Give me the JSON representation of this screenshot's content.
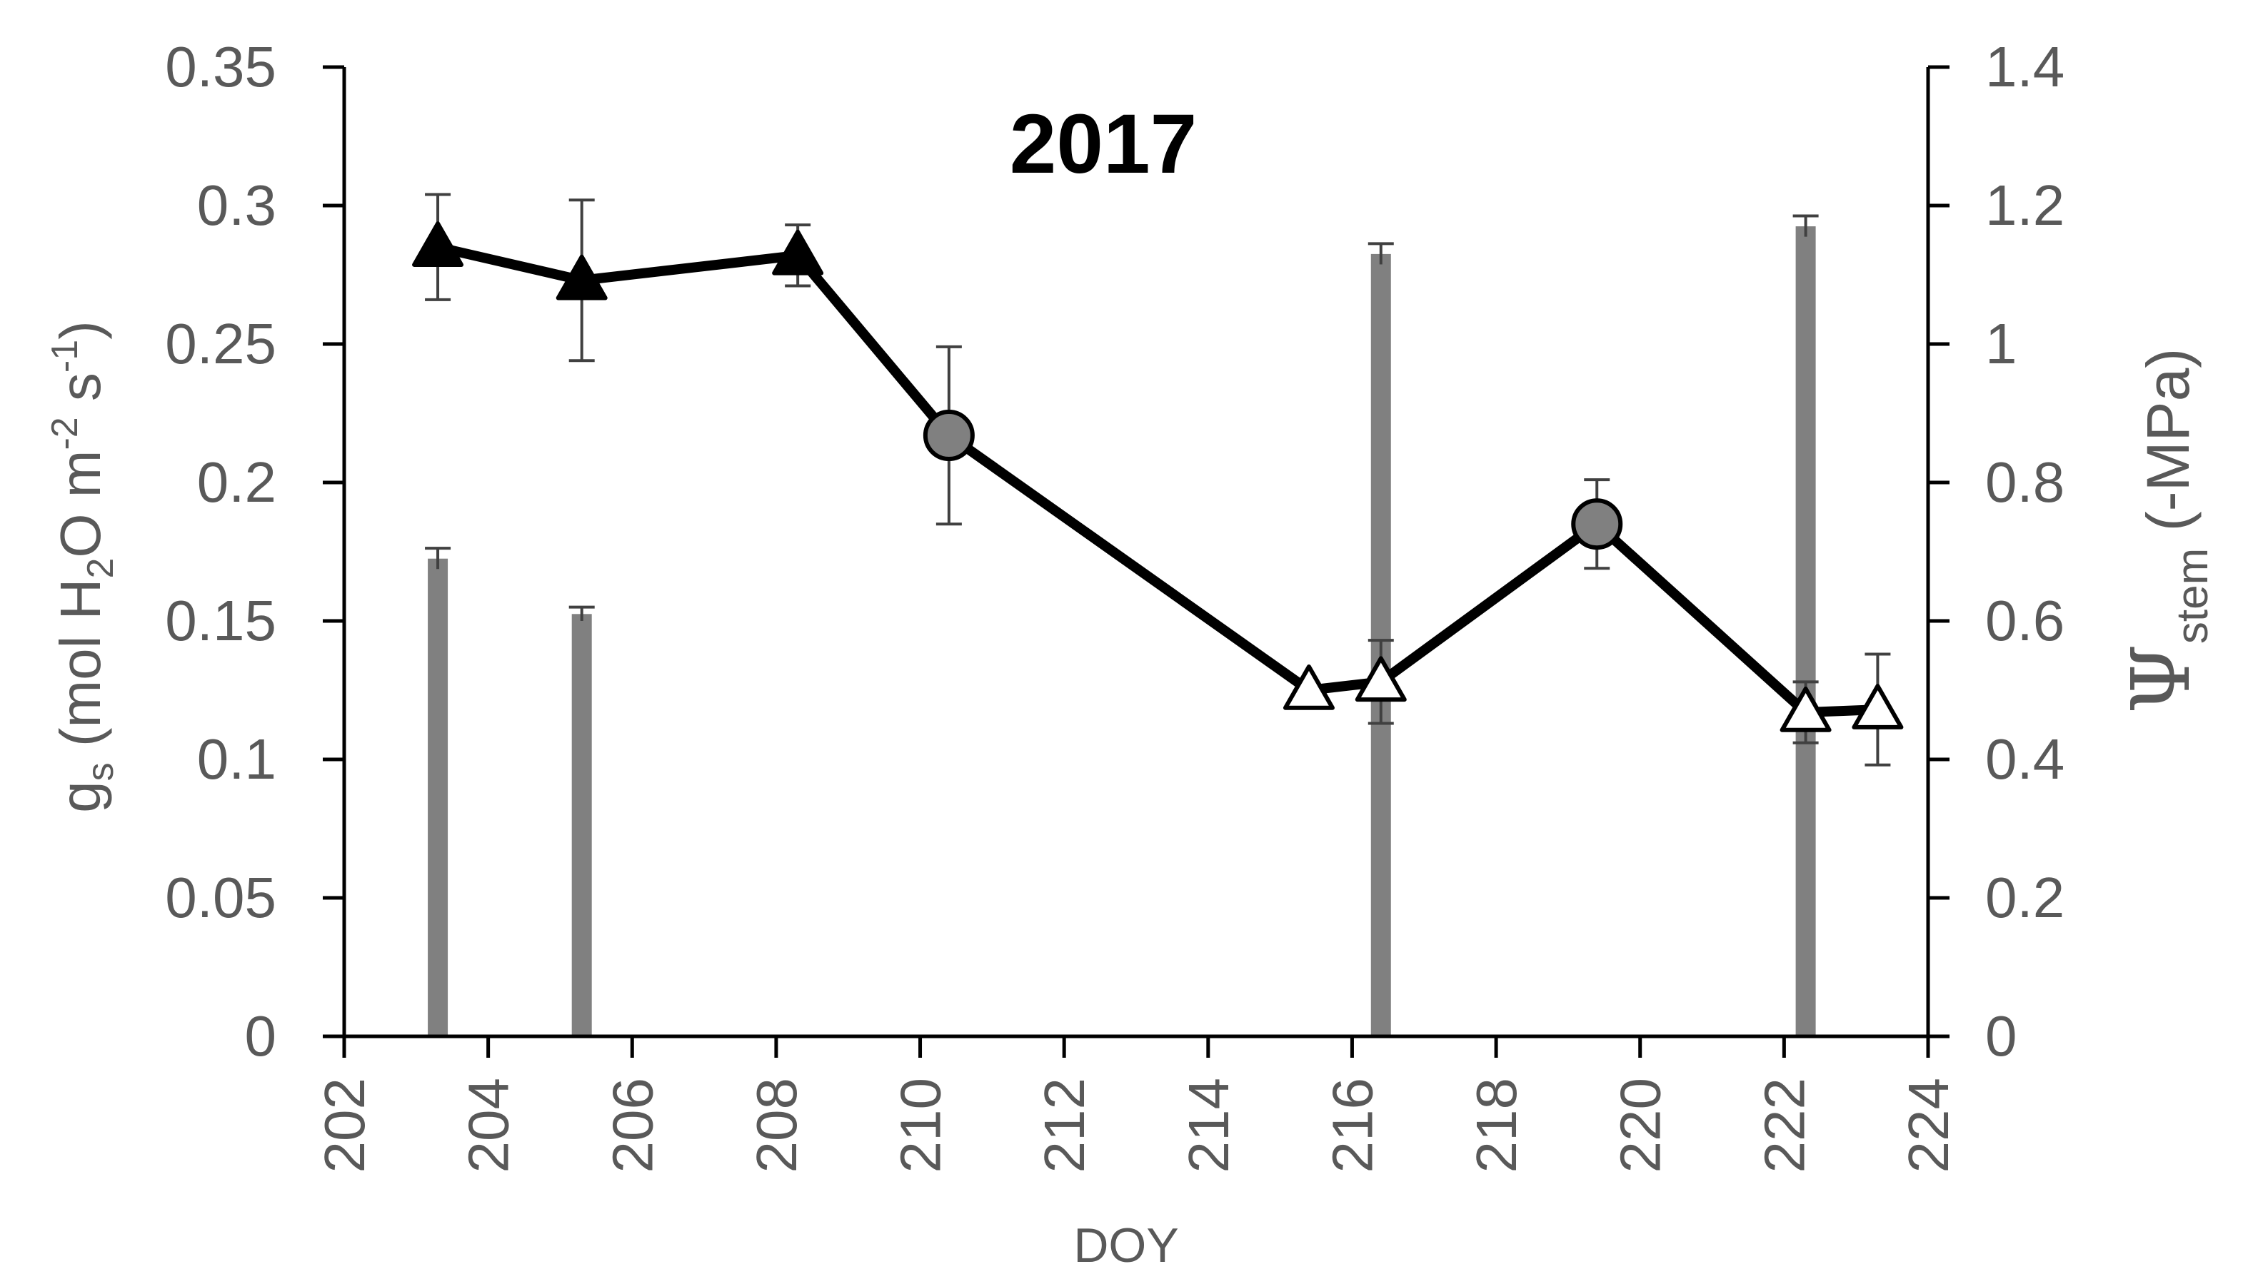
{
  "chart_data": {
    "type": "line",
    "title": "2017",
    "x_axis": {
      "label": "DOY",
      "range": [
        202,
        224
      ],
      "ticks": [
        "202",
        "204",
        "206",
        "208",
        "210",
        "212",
        "214",
        "216",
        "218",
        "220",
        "222",
        "224"
      ]
    },
    "y_left": {
      "label_main": "g",
      "label_sub": "s",
      "label_rest": " (mol H",
      "label_sub2": "2",
      "label_rest2": "O m",
      "label_sup1": "-2",
      "label_rest3": " s",
      "label_sup2": "-1",
      "label_end": ")",
      "range": [
        0,
        0.35
      ],
      "ticks": [
        "0",
        "0.05",
        "0.1",
        "0.15",
        "0.2",
        "0.25",
        "0.3",
        "0.35"
      ]
    },
    "y_right": {
      "label_symbol": "Ψ",
      "label_sub": "stem",
      "label_rest": " (-MPa)",
      "range": [
        0,
        1.4
      ],
      "ticks": [
        "0",
        "0.2",
        "0.4",
        "0.6",
        "0.8",
        "1",
        "1.2",
        "1.4"
      ]
    },
    "gs_series": {
      "points": [
        {
          "x": 203.3,
          "y": 0.285,
          "err": 0.019,
          "marker": "triangle-filled"
        },
        {
          "x": 205.3,
          "y": 0.273,
          "err": 0.029,
          "marker": "triangle-filled"
        },
        {
          "x": 208.3,
          "y": 0.282,
          "err": 0.011,
          "marker": "triangle-filled"
        },
        {
          "x": 210.4,
          "y": 0.217,
          "err": 0.032,
          "marker": "circle-gray"
        },
        {
          "x": 215.4,
          "y": 0.125,
          "err": 0.0,
          "marker": "triangle-open"
        },
        {
          "x": 216.4,
          "y": 0.128,
          "err": 0.015,
          "marker": "triangle-open"
        },
        {
          "x": 219.4,
          "y": 0.185,
          "err": 0.016,
          "marker": "circle-gray"
        },
        {
          "x": 222.3,
          "y": 0.117,
          "err": 0.011,
          "marker": "triangle-open"
        },
        {
          "x": 223.3,
          "y": 0.118,
          "err": 0.02,
          "marker": "triangle-open"
        }
      ]
    },
    "psi_stem_bars": [
      {
        "x": 203.3,
        "y": 0.69,
        "err": 0.015
      },
      {
        "x": 205.3,
        "y": 0.61,
        "err": 0.01
      },
      {
        "x": 216.4,
        "y": 1.13,
        "err": 0.015
      },
      {
        "x": 222.3,
        "y": 1.17,
        "err": 0.015
      }
    ],
    "grid": false,
    "legend": "none",
    "colors": {
      "axis": "#000000",
      "tick_text": "#595959",
      "bar": "#808080",
      "line": "#000000",
      "marker_filled": "#000000",
      "marker_circle": "#808080",
      "marker_open": "#ffffff"
    }
  }
}
